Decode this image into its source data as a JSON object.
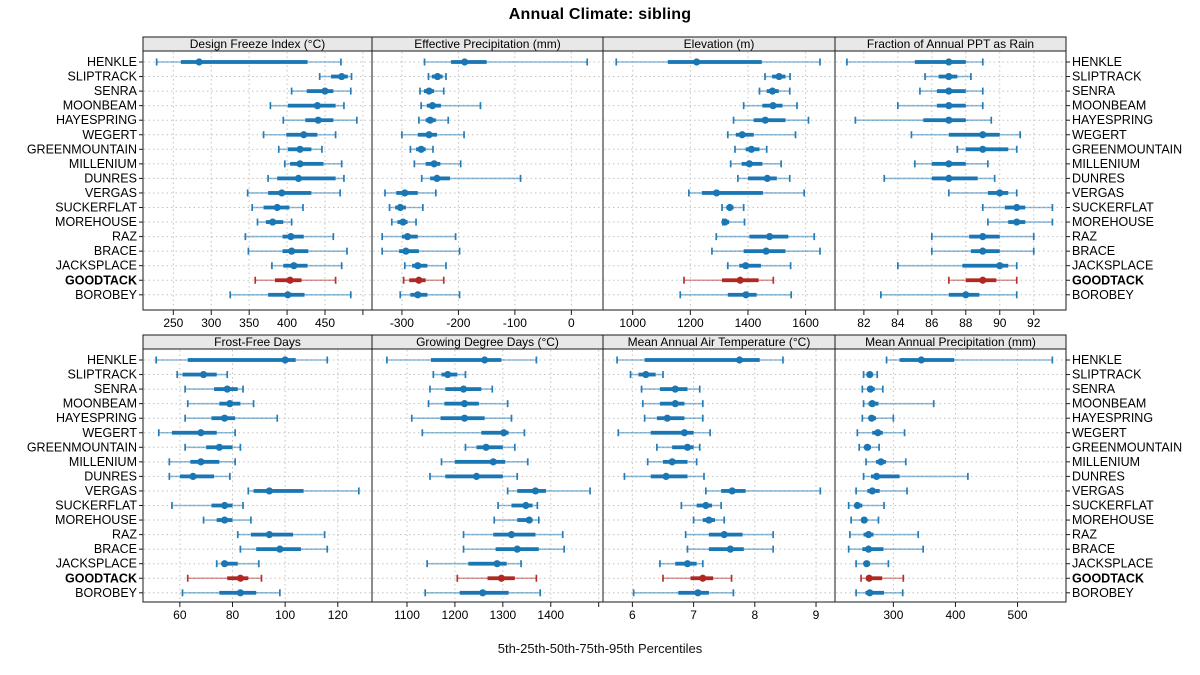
{
  "title": "Annual Climate: sibling",
  "footer": "5th-25th-50th-75th-95th Percentiles",
  "stations": [
    "HENKLE",
    "SLIPTRACK",
    "SENRA",
    "MOONBEAM",
    "HAYESPRING",
    "WEGERT",
    "GREENMOUNTAIN",
    "MILLENIUM",
    "DUNRES",
    "VERGAS",
    "SUCKERFLAT",
    "MOREHOUSE",
    "RAZ",
    "BRACE",
    "JACKSPLACE",
    "GOODTACK",
    "BOROBEY"
  ],
  "highlight_station": "GOODTACK",
  "colors": {
    "series": "#1b76b4",
    "highlight": "#b02822",
    "strip_bg": "#e8e8e8",
    "grid": "#c3c3c3",
    "border": "#1a1a1a",
    "text": "#000000",
    "background": "#ffffff"
  },
  "chart_data": {
    "type": "dotplot",
    "note": "each series row = [5th,25th,50th,75th,95th] percentiles, station order matches stations[]",
    "percentiles": [
      "5th",
      "25th",
      "50th",
      "75th",
      "95th"
    ],
    "panels": [
      {
        "title": "Design Freeze Index (°C)",
        "row": 0,
        "col": 0,
        "xlim": [
          210,
          512
        ],
        "ticks": [
          250,
          300,
          350,
          400,
          450
        ],
        "minor_ticks": [
          500
        ],
        "series": [
          [
            228,
            260,
            284,
            427,
            471
          ],
          [
            443,
            458,
            472,
            480,
            485
          ],
          [
            406,
            426,
            450,
            461,
            484
          ],
          [
            378,
            401,
            440,
            464,
            475
          ],
          [
            395,
            424,
            441,
            461,
            492
          ],
          [
            369,
            399,
            422,
            440,
            464
          ],
          [
            389,
            401,
            417,
            432,
            446
          ],
          [
            397,
            404,
            417,
            448,
            472
          ],
          [
            375,
            387,
            415,
            464,
            475
          ],
          [
            348,
            375,
            393,
            432,
            470
          ],
          [
            354,
            369,
            387,
            403,
            421
          ],
          [
            361,
            372,
            381,
            395,
            406
          ],
          [
            345,
            394,
            405,
            422,
            461
          ],
          [
            349,
            394,
            406,
            428,
            479
          ],
          [
            380,
            395,
            409,
            427,
            472
          ],
          [
            358,
            384,
            404,
            419,
            464
          ],
          [
            325,
            375,
            401,
            423,
            484
          ]
        ]
      },
      {
        "title": "Effective Precipitation (mm)",
        "row": 0,
        "col": 1,
        "xlim": [
          -353,
          56
        ],
        "ticks": [
          -300,
          -200,
          -100,
          0
        ],
        "series": [
          [
            -260,
            -213,
            -189,
            -150,
            28
          ],
          [
            -253,
            -247,
            -237,
            -228,
            -222
          ],
          [
            -268,
            -261,
            -252,
            -243,
            -226
          ],
          [
            -266,
            -256,
            -246,
            -231,
            -161
          ],
          [
            -270,
            -258,
            -250,
            -240,
            -218
          ],
          [
            -300,
            -272,
            -252,
            -238,
            -190
          ],
          [
            -285,
            -275,
            -266,
            -258,
            -245
          ],
          [
            -278,
            -258,
            -243,
            -232,
            -196
          ],
          [
            -265,
            -250,
            -238,
            -215,
            -90
          ],
          [
            -330,
            -310,
            -295,
            -272,
            -240
          ],
          [
            -322,
            -312,
            -303,
            -293,
            -263
          ],
          [
            -318,
            -308,
            -298,
            -290,
            -275
          ],
          [
            -335,
            -300,
            -290,
            -272,
            -205
          ],
          [
            -335,
            -305,
            -293,
            -270,
            -198
          ],
          [
            -295,
            -282,
            -272,
            -255,
            -222
          ],
          [
            -297,
            -287,
            -270,
            -258,
            -226
          ],
          [
            -303,
            -285,
            -272,
            -255,
            -198
          ]
        ]
      },
      {
        "title": "Elevation (m)",
        "row": 0,
        "col": 2,
        "xlim": [
          897,
          1702
        ],
        "ticks": [
          1000,
          1200,
          1400,
          1600
        ],
        "series": [
          [
            943,
            1122,
            1222,
            1448,
            1650
          ],
          [
            1459,
            1484,
            1508,
            1530,
            1546
          ],
          [
            1440,
            1465,
            1485,
            1507,
            1545
          ],
          [
            1385,
            1450,
            1487,
            1520,
            1570
          ],
          [
            1350,
            1420,
            1460,
            1530,
            1610
          ],
          [
            1330,
            1358,
            1380,
            1420,
            1565
          ],
          [
            1355,
            1392,
            1412,
            1440,
            1465
          ],
          [
            1340,
            1378,
            1405,
            1450,
            1515
          ],
          [
            1365,
            1400,
            1467,
            1500,
            1545
          ],
          [
            1195,
            1240,
            1291,
            1452,
            1595
          ],
          [
            1310,
            1325,
            1337,
            1350,
            1385
          ],
          [
            1313,
            1316,
            1320,
            1335,
            1388
          ],
          [
            1290,
            1405,
            1475,
            1540,
            1630
          ],
          [
            1275,
            1385,
            1463,
            1530,
            1650
          ],
          [
            1330,
            1370,
            1392,
            1445,
            1548
          ],
          [
            1178,
            1310,
            1373,
            1437,
            1488
          ],
          [
            1165,
            1330,
            1393,
            1430,
            1550
          ]
        ]
      },
      {
        "title": "Fraction of Annual PPT as Rain",
        "row": 0,
        "col": 3,
        "xlim": [
          80.3,
          93.9
        ],
        "ticks": [
          82,
          84,
          86,
          88,
          90,
          92
        ],
        "series": [
          [
            81,
            85,
            87,
            88,
            89
          ],
          [
            85.6,
            86.4,
            87,
            87.5,
            88.3
          ],
          [
            85.3,
            86.3,
            87,
            88,
            89
          ],
          [
            84,
            86.3,
            87,
            88,
            89
          ],
          [
            81.5,
            85.5,
            87,
            88,
            89.5
          ],
          [
            84.8,
            87,
            89,
            90,
            91.2
          ],
          [
            87.5,
            88,
            89,
            90.5,
            91
          ],
          [
            85,
            86,
            87,
            88,
            89.3
          ],
          [
            83.2,
            86,
            87,
            88.7,
            89.7
          ],
          [
            87,
            89.3,
            90,
            90.5,
            91
          ],
          [
            89,
            90.3,
            91,
            91.5,
            93.1
          ],
          [
            89.3,
            90.5,
            91,
            91.5,
            93.1
          ],
          [
            86,
            88.2,
            89,
            90,
            92
          ],
          [
            86,
            88.3,
            89,
            90,
            92
          ],
          [
            84,
            87.8,
            90,
            90.5,
            91
          ],
          [
            87,
            88,
            89,
            89.8,
            91
          ],
          [
            83,
            87,
            88,
            88.8,
            91
          ]
        ]
      },
      {
        "title": "Frost-Free Days",
        "row": 1,
        "col": 0,
        "xlim": [
          46,
          133
        ],
        "ticks": [
          60,
          80,
          100,
          120
        ],
        "series": [
          [
            51,
            63,
            100,
            104,
            116
          ],
          [
            59,
            61,
            69,
            74,
            78
          ],
          [
            62,
            73,
            78,
            82,
            84
          ],
          [
            63,
            75,
            79,
            83,
            88
          ],
          [
            62,
            72,
            77,
            81,
            97
          ],
          [
            52,
            57,
            68,
            74,
            81
          ],
          [
            62,
            70,
            75,
            80,
            83
          ],
          [
            56,
            64,
            68,
            75,
            81
          ],
          [
            56,
            60,
            65,
            73,
            79
          ],
          [
            86,
            88,
            94,
            107,
            128
          ],
          [
            57,
            72,
            77,
            80,
            84
          ],
          [
            69,
            74,
            77,
            80,
            87
          ],
          [
            82,
            87,
            94,
            103,
            115
          ],
          [
            83,
            89,
            98,
            106,
            116
          ],
          [
            74,
            76,
            77,
            82,
            90
          ],
          [
            63,
            78,
            83,
            86,
            91
          ],
          [
            61,
            75,
            83,
            89,
            98
          ]
        ]
      },
      {
        "title": "Growing Degree Days (°C)",
        "row": 1,
        "col": 1,
        "xlim": [
          1027,
          1509
        ],
        "ticks": [
          1100,
          1200,
          1300,
          1400
        ],
        "minor_ticks": [
          1500
        ],
        "series": [
          [
            1058,
            1150,
            1262,
            1297,
            1370
          ],
          [
            1155,
            1172,
            1185,
            1205,
            1222
          ],
          [
            1148,
            1180,
            1218,
            1255,
            1278
          ],
          [
            1145,
            1178,
            1220,
            1250,
            1310
          ],
          [
            1110,
            1170,
            1220,
            1262,
            1318
          ],
          [
            1132,
            1255,
            1302,
            1312,
            1345
          ],
          [
            1222,
            1245,
            1265,
            1300,
            1325
          ],
          [
            1172,
            1200,
            1280,
            1305,
            1352
          ],
          [
            1148,
            1180,
            1245,
            1300,
            1330
          ],
          [
            1310,
            1330,
            1368,
            1390,
            1482
          ],
          [
            1290,
            1318,
            1348,
            1362,
            1372
          ],
          [
            1282,
            1330,
            1355,
            1362,
            1375
          ],
          [
            1218,
            1280,
            1318,
            1368,
            1425
          ],
          [
            1218,
            1285,
            1330,
            1375,
            1428
          ],
          [
            1142,
            1228,
            1288,
            1308,
            1338
          ],
          [
            1205,
            1268,
            1297,
            1325,
            1370
          ],
          [
            1138,
            1210,
            1258,
            1312,
            1378
          ]
        ]
      },
      {
        "title": "Mean Annual Air Temperature (°C)",
        "row": 1,
        "col": 2,
        "xlim": [
          5.52,
          9.31
        ],
        "ticks": [
          6,
          7,
          8,
          9
        ],
        "series": [
          [
            5.75,
            6.2,
            7.75,
            8.08,
            8.46
          ],
          [
            5.97,
            6.1,
            6.22,
            6.38,
            6.5
          ],
          [
            6.15,
            6.45,
            6.7,
            6.9,
            7.1
          ],
          [
            6.17,
            6.45,
            6.7,
            6.85,
            7.15
          ],
          [
            6.2,
            6.4,
            6.57,
            6.85,
            7.15
          ],
          [
            5.77,
            6.3,
            6.85,
            7.0,
            7.27
          ],
          [
            6.4,
            6.65,
            6.9,
            7.0,
            7.1
          ],
          [
            6.25,
            6.5,
            6.65,
            6.9,
            7.05
          ],
          [
            5.87,
            6.3,
            6.55,
            6.9,
            7.17
          ],
          [
            7.2,
            7.45,
            7.63,
            7.85,
            9.07
          ],
          [
            6.8,
            7.05,
            7.2,
            7.3,
            7.45
          ],
          [
            7.0,
            7.15,
            7.25,
            7.35,
            7.5
          ],
          [
            6.87,
            7.25,
            7.5,
            7.8,
            8.3
          ],
          [
            6.9,
            7.25,
            7.6,
            7.82,
            8.3
          ],
          [
            6.45,
            6.7,
            6.9,
            7.05,
            7.15
          ],
          [
            6.5,
            6.95,
            7.15,
            7.32,
            7.62
          ],
          [
            6.02,
            6.75,
            7.07,
            7.25,
            7.65
          ]
        ]
      },
      {
        "title": "Mean Annual Precipitation (mm)",
        "row": 1,
        "col": 3,
        "xlim": [
          206,
          578
        ],
        "ticks": [
          300,
          400,
          500
        ],
        "series": [
          [
            289,
            310,
            345,
            398,
            556
          ],
          [
            252,
            258,
            262,
            266,
            274
          ],
          [
            250,
            258,
            263,
            270,
            283
          ],
          [
            252,
            260,
            266,
            276,
            365
          ],
          [
            250,
            260,
            265,
            272,
            300
          ],
          [
            242,
            266,
            275,
            283,
            318
          ],
          [
            245,
            254,
            258,
            264,
            277
          ],
          [
            256,
            272,
            280,
            288,
            320
          ],
          [
            252,
            264,
            273,
            310,
            420
          ],
          [
            240,
            258,
            266,
            278,
            322
          ],
          [
            228,
            238,
            242,
            250,
            285
          ],
          [
            232,
            248,
            253,
            258,
            276
          ],
          [
            230,
            252,
            260,
            268,
            340
          ],
          [
            228,
            250,
            260,
            284,
            348
          ],
          [
            240,
            252,
            257,
            262,
            292
          ],
          [
            248,
            256,
            261,
            282,
            316
          ],
          [
            240,
            255,
            262,
            285,
            315
          ]
        ]
      }
    ]
  }
}
